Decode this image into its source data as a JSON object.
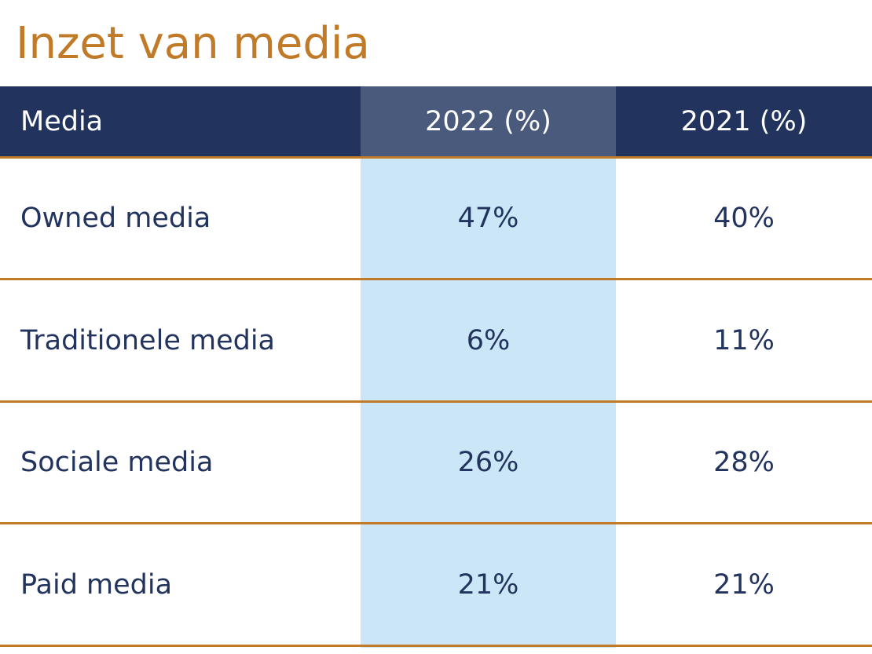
{
  "title": "Inzet van media",
  "table": {
    "headers": [
      "Media",
      "2022 (%)",
      "2021 (%)"
    ],
    "rows": [
      [
        "Owned media",
        "47%",
        "40%"
      ],
      [
        "Traditionele media",
        "6%",
        "11%"
      ],
      [
        "Sociale media",
        "26%",
        "28%"
      ],
      [
        "Paid media",
        "21%",
        "21%"
      ]
    ]
  }
}
